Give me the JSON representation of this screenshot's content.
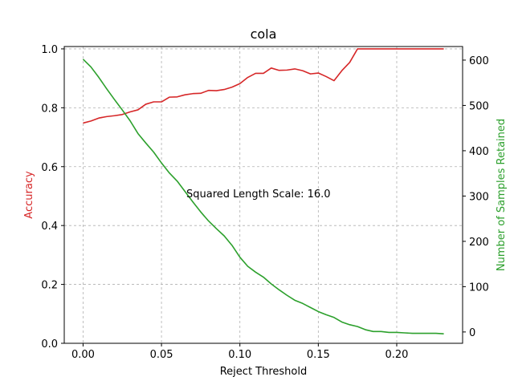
{
  "chart_data": {
    "type": "line",
    "title": "cola",
    "xlabel": "Reject Threshold",
    "ylabel_left": "Accuracy",
    "ylabel_right": "Number of Samples Retained",
    "annotation": "Squared Length Scale: 16.0",
    "xlim": [
      -0.012,
      0.242
    ],
    "ylim_left": [
      0.0,
      1.008
    ],
    "ylim_right": [
      -25,
      630
    ],
    "x_ticks": [
      "0.00",
      "0.05",
      "0.10",
      "0.15",
      "0.20"
    ],
    "y_left_ticks": [
      "0.0",
      "0.2",
      "0.4",
      "0.6",
      "0.8",
      "1.0"
    ],
    "y_right_ticks": [
      "0",
      "100",
      "200",
      "300",
      "400",
      "500",
      "600"
    ],
    "grid": true,
    "colors": {
      "accuracy": "#d62728",
      "samples": "#2ca02c",
      "grid": "#b0b0b0"
    },
    "x": [
      0.0,
      0.005,
      0.01,
      0.015,
      0.02,
      0.025,
      0.03,
      0.035,
      0.04,
      0.045,
      0.05,
      0.055,
      0.06,
      0.065,
      0.07,
      0.075,
      0.08,
      0.085,
      0.09,
      0.095,
      0.1,
      0.105,
      0.11,
      0.115,
      0.12,
      0.125,
      0.13,
      0.135,
      0.14,
      0.145,
      0.15,
      0.155,
      0.16,
      0.165,
      0.17,
      0.175,
      0.18,
      0.185,
      0.19,
      0.195,
      0.2,
      0.205,
      0.21,
      0.215,
      0.22,
      0.225,
      0.23
    ],
    "series": [
      {
        "axis": "left",
        "values": [
          0.748,
          0.755,
          0.765,
          0.77,
          0.773,
          0.777,
          0.786,
          0.793,
          0.812,
          0.82,
          0.82,
          0.836,
          0.837,
          0.844,
          0.848,
          0.849,
          0.859,
          0.858,
          0.862,
          0.87,
          0.882,
          0.903,
          0.917,
          0.917,
          0.935,
          0.927,
          0.928,
          0.932,
          0.926,
          0.915,
          0.918,
          0.906,
          0.892,
          0.926,
          0.954,
          1.0,
          1.0,
          1.0,
          1.0,
          1.0,
          1.0,
          1.0,
          1.0,
          1.0,
          1.0,
          1.0,
          1.0
        ]
      },
      {
        "axis": "right",
        "values": [
          602,
          585,
          562,
          537,
          513,
          490,
          466,
          438,
          417,
          397,
          373,
          351,
          333,
          310,
          287,
          265,
          245,
          228,
          212,
          191,
          165,
          145,
          132,
          121,
          106,
          93,
          81,
          70,
          63,
          54,
          45,
          38,
          32,
          22,
          16,
          12,
          5,
          1,
          1,
          -1,
          -1,
          -2,
          -3,
          -3,
          -3,
          -3,
          -4
        ]
      }
    ]
  }
}
